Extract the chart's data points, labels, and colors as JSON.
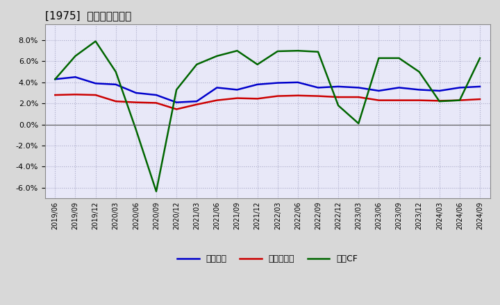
{
  "title": "[1975]  マージンの推移",
  "x_labels": [
    "2019/06",
    "2019/09",
    "2019/12",
    "2020/03",
    "2020/06",
    "2020/09",
    "2020/12",
    "2021/03",
    "2021/06",
    "2021/09",
    "2021/12",
    "2022/03",
    "2022/06",
    "2022/09",
    "2022/12",
    "2023/03",
    "2023/06",
    "2023/09",
    "2023/12",
    "2024/03",
    "2024/06",
    "2024/09"
  ],
  "keijo_rieki": [
    4.3,
    4.5,
    3.9,
    3.8,
    3.0,
    2.8,
    2.1,
    2.2,
    3.5,
    3.3,
    3.8,
    3.95,
    4.0,
    3.5,
    3.6,
    3.5,
    3.2,
    3.5,
    3.3,
    3.2,
    3.5,
    3.6
  ],
  "toukiryueki": [
    2.8,
    2.85,
    2.8,
    2.2,
    2.1,
    2.05,
    1.45,
    1.9,
    2.3,
    2.5,
    2.45,
    2.7,
    2.75,
    2.7,
    2.6,
    2.6,
    2.3,
    2.3,
    2.3,
    2.25,
    2.3,
    2.4
  ],
  "eigyo_cf": [
    4.3,
    6.5,
    7.9,
    5.0,
    -0.5,
    -6.35,
    3.3,
    5.7,
    6.5,
    7.0,
    5.7,
    6.95,
    7.0,
    6.9,
    1.8,
    0.1,
    6.3,
    6.3,
    5.0,
    2.2,
    2.3,
    6.3
  ],
  "ylim": [
    -7.0,
    9.5
  ],
  "yticks": [
    -6.0,
    -4.0,
    -2.0,
    0.0,
    2.0,
    4.0,
    6.0,
    8.0
  ],
  "color_keijo": "#0000cc",
  "color_touki": "#cc0000",
  "color_eigyo": "#006600",
  "legend_labels": [
    "経常利益",
    "当期純利益",
    "営業CF"
  ],
  "bg_color": "#d8d8d8",
  "plot_bg_color": "#e8e8f8"
}
